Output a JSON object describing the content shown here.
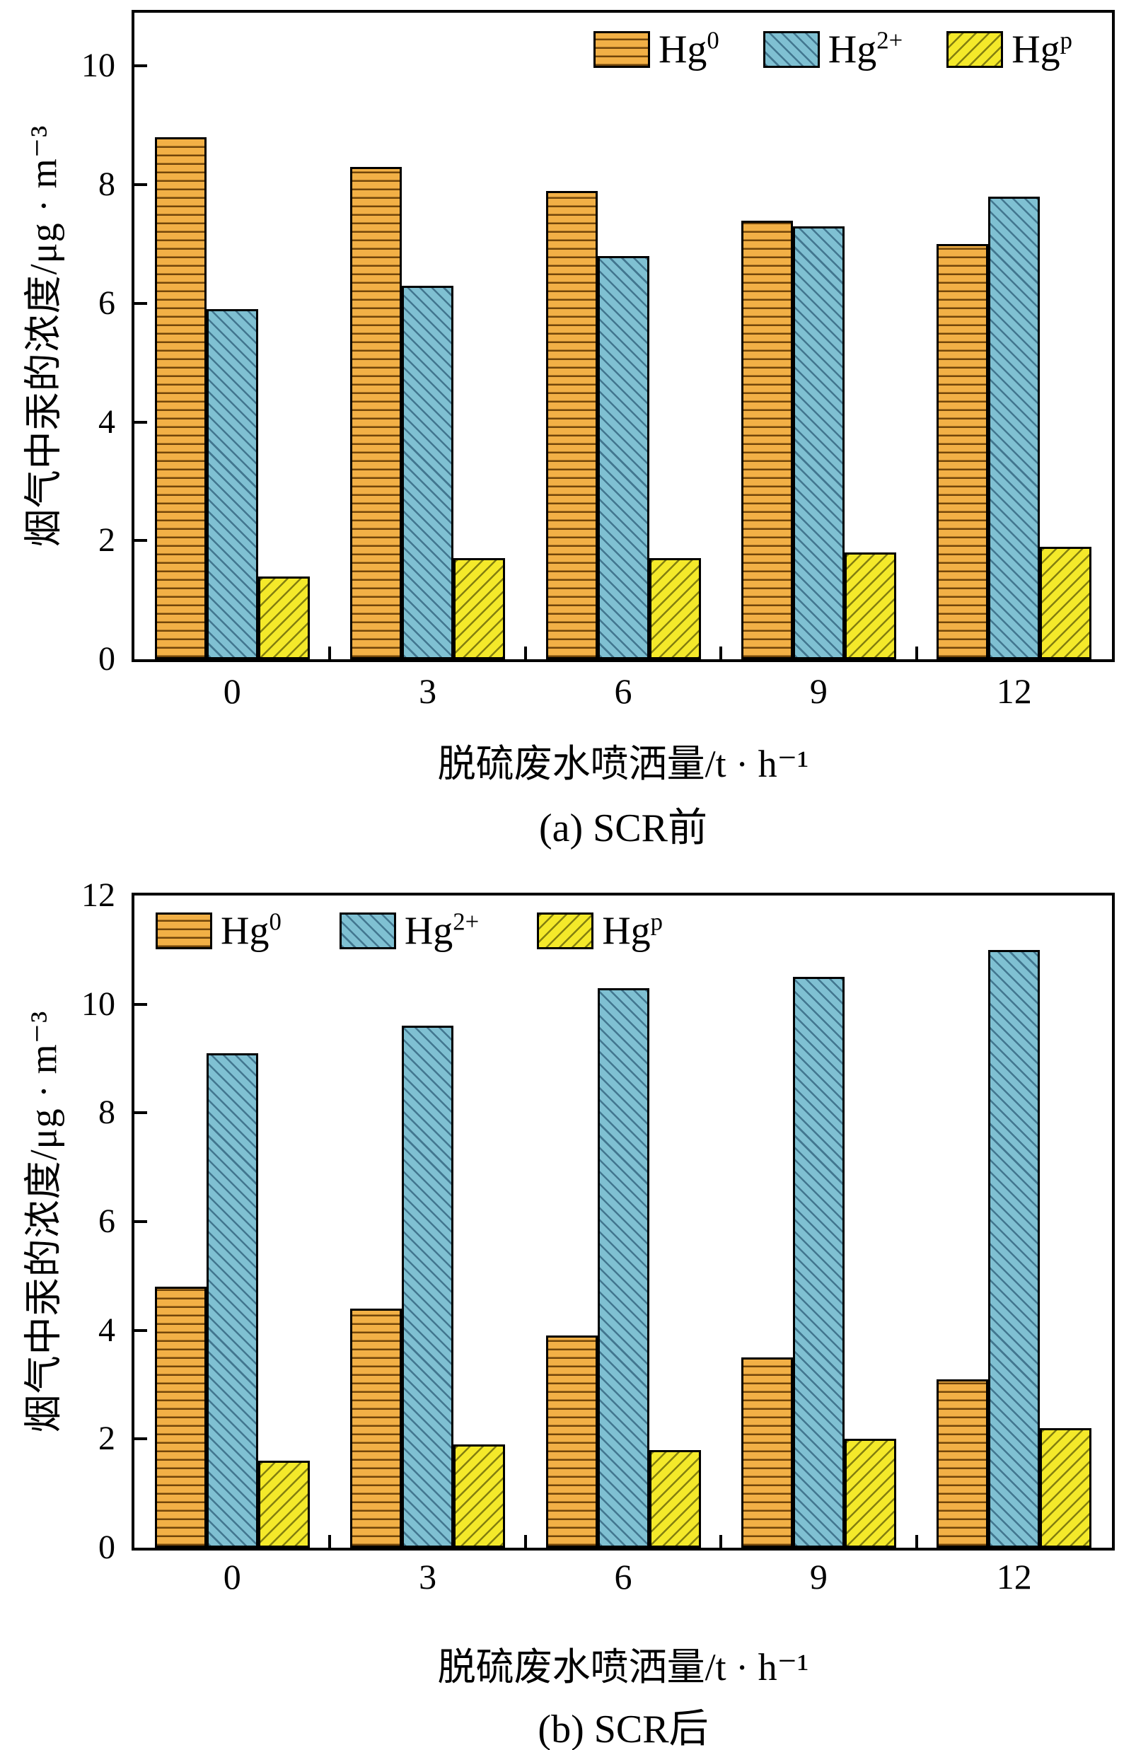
{
  "page": {
    "background": "#ffffff"
  },
  "styles": {
    "axis_color": "#000000",
    "hg0": {
      "fill": "#F2B046",
      "hatch": "horizontal-lines",
      "hatch_color": "#5C3400"
    },
    "hg2": {
      "fill": "#7FC0D2",
      "hatch": "diagonal-backslash",
      "hatch_color": "#103A58"
    },
    "hgp": {
      "fill": "#F4E92A",
      "hatch": "diagonal-slash",
      "hatch_color": "#464600"
    }
  },
  "chart_data": [
    {
      "type": "bar",
      "title": "(a) SCR前",
      "xlabel": "脱硫废水喷洒量/t · h⁻¹",
      "ylabel": "烟气中汞的浓度/μg · m⁻³",
      "categories": [
        0,
        3,
        6,
        9,
        12
      ],
      "ylim": [
        0,
        10.9
      ],
      "yticks": [
        0,
        2,
        4,
        6,
        8,
        10
      ],
      "grid": false,
      "legend_position": "top-right",
      "series": [
        {
          "name": "Hg0",
          "label_base": "Hg",
          "label_sup": "0",
          "style": "hg0",
          "values": [
            8.8,
            8.3,
            7.9,
            7.4,
            7.0
          ]
        },
        {
          "name": "Hg2+",
          "label_base": "Hg",
          "label_sup": "2+",
          "style": "hg2",
          "values": [
            5.9,
            6.3,
            6.8,
            7.3,
            7.8
          ]
        },
        {
          "name": "Hgp",
          "label_base": "Hg",
          "label_sup": "p",
          "style": "hgp",
          "values": [
            1.4,
            1.7,
            1.7,
            1.8,
            1.9
          ]
        }
      ]
    },
    {
      "type": "bar",
      "title": "(b) SCR后",
      "xlabel": "脱硫废水喷洒量/t · h⁻¹",
      "ylabel": "烟气中汞的浓度/μg · m⁻³",
      "categories": [
        0,
        3,
        6,
        9,
        12
      ],
      "ylim": [
        0,
        12
      ],
      "yticks": [
        0,
        2,
        4,
        6,
        8,
        10,
        12
      ],
      "grid": false,
      "legend_position": "top-left",
      "series": [
        {
          "name": "Hg0",
          "label_base": "Hg",
          "label_sup": "0",
          "style": "hg0",
          "values": [
            4.8,
            4.4,
            3.9,
            3.5,
            3.1
          ]
        },
        {
          "name": "Hg2+",
          "label_base": "Hg",
          "label_sup": "2+",
          "style": "hg2",
          "values": [
            9.1,
            9.6,
            10.3,
            10.5,
            11.0
          ]
        },
        {
          "name": "Hgp",
          "label_base": "Hg",
          "label_sup": "p",
          "style": "hgp",
          "values": [
            1.6,
            1.9,
            1.8,
            2.0,
            2.2
          ]
        }
      ]
    }
  ]
}
